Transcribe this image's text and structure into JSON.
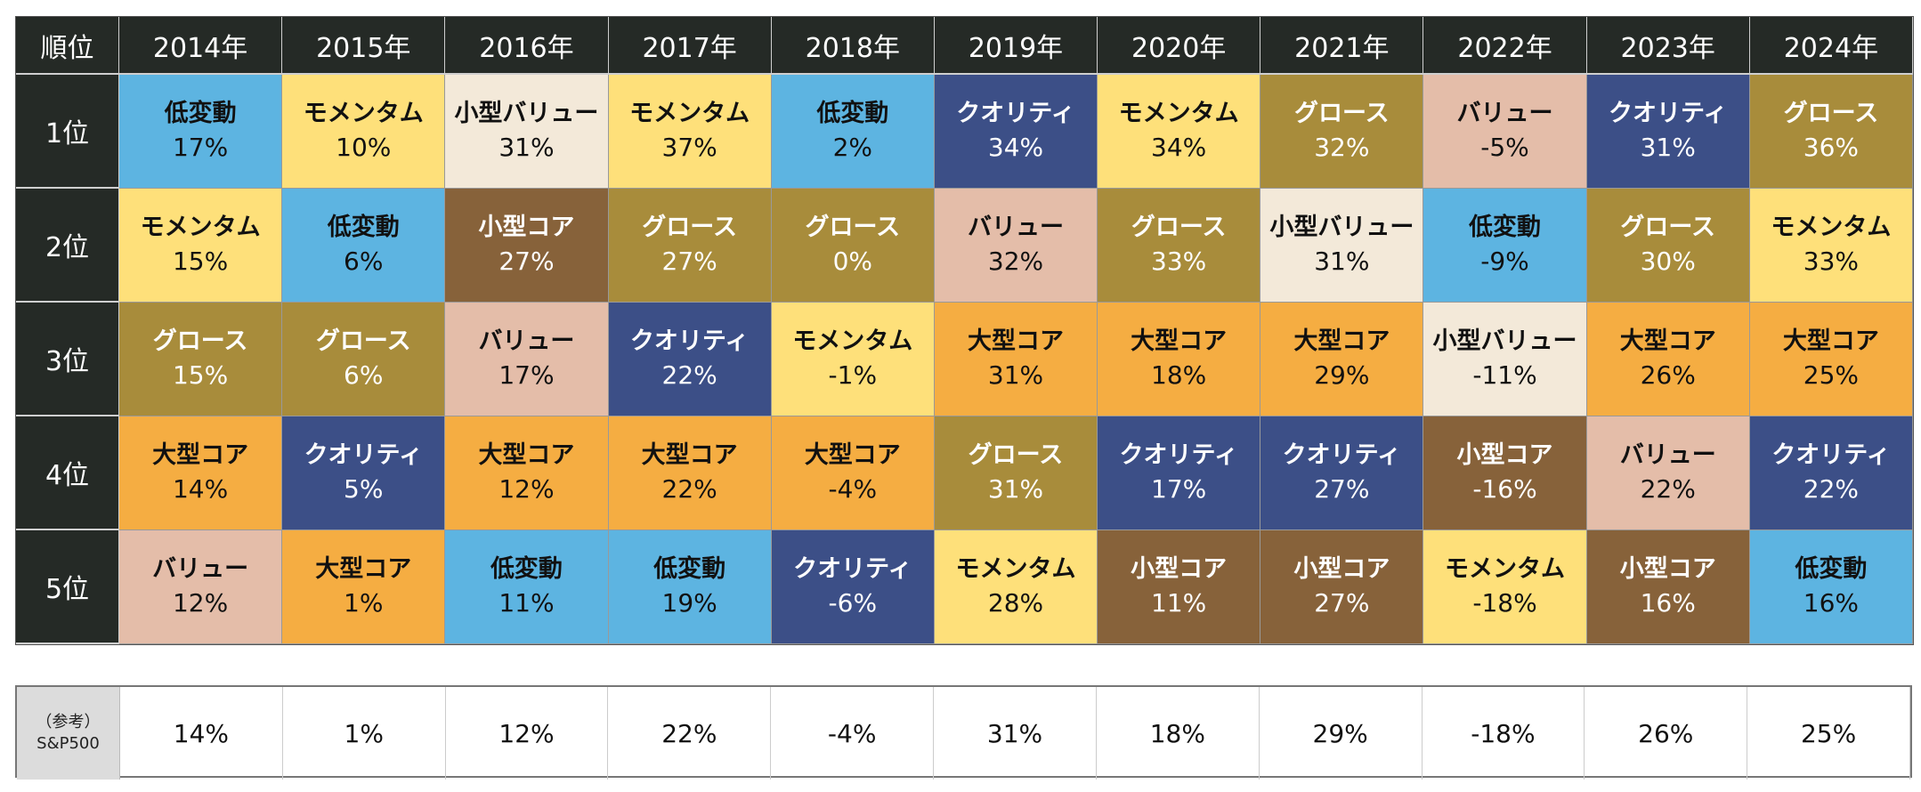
{
  "chart_data": {
    "type": "table",
    "corner_label": "順位",
    "years": [
      "2014年",
      "2015年",
      "2016年",
      "2017年",
      "2018年",
      "2019年",
      "2020年",
      "2021年",
      "2022年",
      "2023年",
      "2024年"
    ],
    "ranks": [
      "1位",
      "2位",
      "3位",
      "4位",
      "5位"
    ],
    "rows": [
      [
        [
          "低変動",
          "17%"
        ],
        [
          "モメンタム",
          "10%"
        ],
        [
          "小型バリュー",
          "31%"
        ],
        [
          "モメンタム",
          "37%"
        ],
        [
          "低変動",
          "2%"
        ],
        [
          "クオリティ",
          "34%"
        ],
        [
          "モメンタム",
          "34%"
        ],
        [
          "グロース",
          "32%"
        ],
        [
          "バリュー",
          "-5%"
        ],
        [
          "クオリティ",
          "31%"
        ],
        [
          "グロース",
          "36%"
        ]
      ],
      [
        [
          "モメンタム",
          "15%"
        ],
        [
          "低変動",
          "6%"
        ],
        [
          "小型コア",
          "27%"
        ],
        [
          "グロース",
          "27%"
        ],
        [
          "グロース",
          "0%"
        ],
        [
          "バリュー",
          "32%"
        ],
        [
          "グロース",
          "33%"
        ],
        [
          "小型バリュー",
          "31%"
        ],
        [
          "低変動",
          "-9%"
        ],
        [
          "グロース",
          "30%"
        ],
        [
          "モメンタム",
          "33%"
        ]
      ],
      [
        [
          "グロース",
          "15%"
        ],
        [
          "グロース",
          "6%"
        ],
        [
          "バリュー",
          "17%"
        ],
        [
          "クオリティ",
          "22%"
        ],
        [
          "モメンタム",
          "-1%"
        ],
        [
          "大型コア",
          "31%"
        ],
        [
          "大型コア",
          "18%"
        ],
        [
          "大型コア",
          "29%"
        ],
        [
          "小型バリュー",
          "-11%"
        ],
        [
          "大型コア",
          "26%"
        ],
        [
          "大型コア",
          "25%"
        ]
      ],
      [
        [
          "大型コア",
          "14%"
        ],
        [
          "クオリティ",
          "5%"
        ],
        [
          "大型コア",
          "12%"
        ],
        [
          "大型コア",
          "22%"
        ],
        [
          "大型コア",
          "-4%"
        ],
        [
          "グロース",
          "31%"
        ],
        [
          "クオリティ",
          "17%"
        ],
        [
          "クオリティ",
          "27%"
        ],
        [
          "小型コア",
          "-16%"
        ],
        [
          "バリュー",
          "22%"
        ],
        [
          "クオリティ",
          "22%"
        ]
      ],
      [
        [
          "バリュー",
          "12%"
        ],
        [
          "大型コア",
          "1%"
        ],
        [
          "低変動",
          "11%"
        ],
        [
          "低変動",
          "19%"
        ],
        [
          "クオリティ",
          "-6%"
        ],
        [
          "モメンタム",
          "28%"
        ],
        [
          "小型コア",
          "11%"
        ],
        [
          "小型コア",
          "27%"
        ],
        [
          "モメンタム",
          "-18%"
        ],
        [
          "小型コア",
          "16%"
        ],
        [
          "低変動",
          "16%"
        ]
      ]
    ],
    "category_colors": {
      "低変動": {
        "bg": "#5db4e1",
        "fg": "#111111"
      },
      "モメンタム": {
        "bg": "#fee07a",
        "fg": "#111111"
      },
      "小型バリュー": {
        "bg": "#f3e9d9",
        "fg": "#111111"
      },
      "グロース": {
        "bg": "#a88c3b",
        "fg": "#ffffff"
      },
      "クオリティ": {
        "bg": "#3c4f87",
        "fg": "#ffffff"
      },
      "バリュー": {
        "bg": "#e4bda9",
        "fg": "#111111"
      },
      "小型コア": {
        "bg": "#87623a",
        "fg": "#ffffff"
      },
      "大型コア": {
        "bg": "#f5ad42",
        "fg": "#111111"
      }
    },
    "reference": {
      "label_line1": "（参考）",
      "label_line2": "S&P500",
      "values": [
        "14%",
        "1%",
        "12%",
        "22%",
        "-4%",
        "31%",
        "18%",
        "29%",
        "-18%",
        "26%",
        "25%"
      ]
    }
  }
}
